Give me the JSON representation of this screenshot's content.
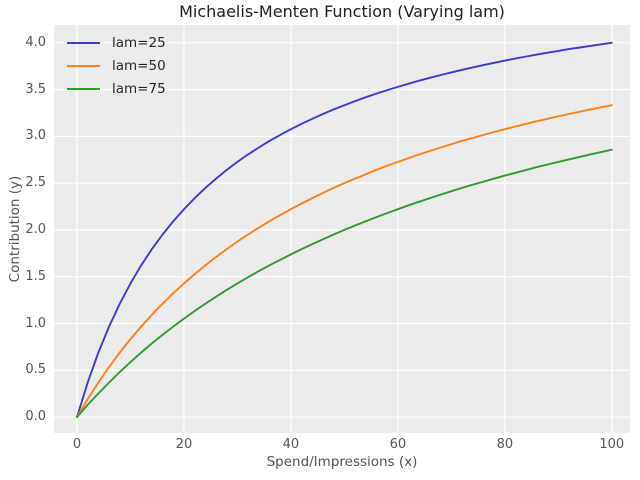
{
  "figure": {
    "title": "Michaelis-Menten Function (Varying lam)",
    "xlabel": "Spend/Impressions (x)",
    "ylabel": "Contribution (y)"
  },
  "styles": {
    "figure_bg": "#ffffff",
    "plot_bg": "#ebebeb",
    "grid_color": "#ffffff",
    "tick_color": "#555555",
    "axis_label_color": "#555555",
    "title_color": "#1f1f1f",
    "legend_text_color": "#262626"
  },
  "chart_data": {
    "type": "line",
    "title": "Michaelis-Menten Function (Varying lam)",
    "xlabel": "Spend/Impressions (x)",
    "ylabel": "Contribution (y)",
    "xlim": [
      -4.3,
      103.4
    ],
    "ylim": [
      -0.17,
      4.19
    ],
    "xticks": [
      0,
      20,
      40,
      60,
      80,
      100
    ],
    "yticks": [
      0.0,
      0.5,
      1.0,
      1.5,
      2.0,
      2.5,
      3.0,
      3.5,
      4.0
    ],
    "grid": true,
    "legend": {
      "position": "upper left",
      "frame": false
    },
    "function": "y = 5*x / (lam + x)",
    "x": [
      0,
      2,
      4,
      6,
      8,
      10,
      12,
      14,
      16,
      18,
      20,
      22,
      24,
      26,
      28,
      30,
      32,
      34,
      36,
      38,
      40,
      42,
      44,
      46,
      48,
      50,
      52,
      54,
      56,
      58,
      60,
      62,
      64,
      66,
      68,
      70,
      72,
      74,
      76,
      78,
      80,
      82,
      84,
      86,
      88,
      90,
      92,
      94,
      96,
      98,
      100
    ],
    "series": [
      {
        "name": "lam=25",
        "color": "#3a3ad1",
        "values": [
          0,
          0.37,
          0.69,
          0.968,
          1.212,
          1.429,
          1.622,
          1.795,
          1.951,
          2.093,
          2.222,
          2.34,
          2.449,
          2.549,
          2.642,
          2.727,
          2.807,
          2.881,
          2.951,
          3.016,
          3.077,
          3.134,
          3.188,
          3.239,
          3.288,
          3.333,
          3.377,
          3.418,
          3.457,
          3.494,
          3.529,
          3.563,
          3.596,
          3.626,
          3.656,
          3.684,
          3.711,
          3.737,
          3.762,
          3.786,
          3.81,
          3.832,
          3.853,
          3.874,
          3.894,
          3.913,
          3.932,
          3.95,
          3.967,
          3.984,
          4.0
        ]
      },
      {
        "name": "lam=50",
        "color": "#ff7f13",
        "values": [
          0,
          0.192,
          0.37,
          0.536,
          0.69,
          0.833,
          0.968,
          1.094,
          1.212,
          1.324,
          1.429,
          1.528,
          1.622,
          1.711,
          1.795,
          1.875,
          1.951,
          2.024,
          2.093,
          2.159,
          2.222,
          2.283,
          2.34,
          2.396,
          2.449,
          2.5,
          2.549,
          2.596,
          2.642,
          2.685,
          2.727,
          2.768,
          2.807,
          2.845,
          2.881,
          2.917,
          2.951,
          2.984,
          3.016,
          3.047,
          3.077,
          3.106,
          3.134,
          3.162,
          3.188,
          3.214,
          3.239,
          3.264,
          3.288,
          3.311,
          3.333
        ]
      },
      {
        "name": "lam=75",
        "color": "#2f9b2d",
        "values": [
          0,
          0.13,
          0.253,
          0.37,
          0.482,
          0.588,
          0.69,
          0.787,
          0.879,
          0.968,
          1.053,
          1.134,
          1.212,
          1.287,
          1.359,
          1.429,
          1.495,
          1.56,
          1.622,
          1.681,
          1.739,
          1.795,
          1.849,
          1.901,
          1.951,
          2.0,
          2.047,
          2.093,
          2.137,
          2.18,
          2.222,
          2.263,
          2.302,
          2.34,
          2.378,
          2.414,
          2.449,
          2.483,
          2.517,
          2.549,
          2.581,
          2.611,
          2.642,
          2.671,
          2.699,
          2.727,
          2.754,
          2.781,
          2.807,
          2.832,
          2.857
        ]
      }
    ]
  }
}
